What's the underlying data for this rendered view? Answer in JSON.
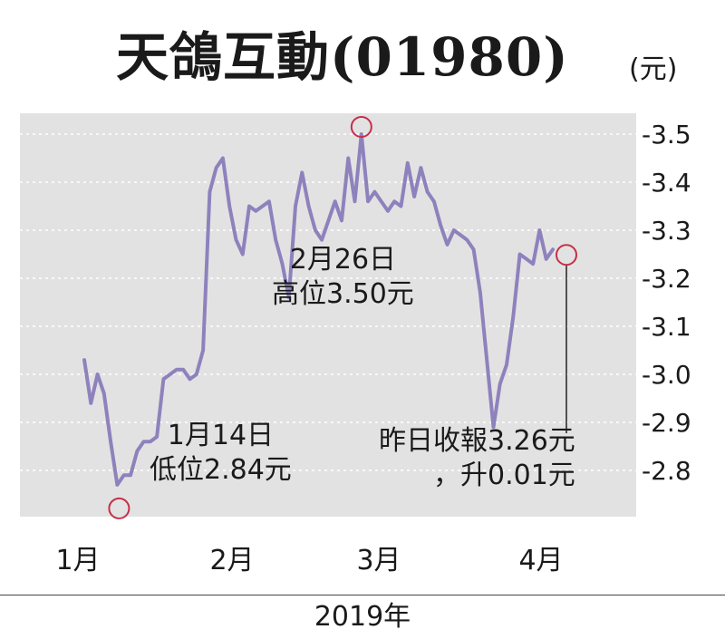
{
  "header": {
    "title": "天鴿互動(01980)",
    "unit": "(元)"
  },
  "chart_data": {
    "type": "line",
    "title": "天鴿互動(01980)",
    "ylabel": "(元)",
    "xlabel": "2019年",
    "ylim": [
      2.75,
      3.54
    ],
    "yticks": [
      2.8,
      2.9,
      3.0,
      3.1,
      3.2,
      3.3,
      3.4,
      3.5
    ],
    "ytick_labels": [
      "-2.8",
      "-2.9",
      "-3.0",
      "-3.1",
      "-3.2",
      "-3.3",
      "-3.4",
      "-3.5"
    ],
    "months": [
      "1月",
      "2月",
      "3月",
      "4月"
    ],
    "series_color": "#8e82bd",
    "marker_color": "#c4304a",
    "series": [
      {
        "values": [
          3.03,
          2.94,
          3.0,
          2.96,
          2.86,
          2.77,
          2.79,
          2.79,
          2.84,
          2.86,
          2.86,
          2.87,
          2.99,
          3.0,
          3.01,
          3.01,
          2.99,
          3.0,
          3.05,
          3.38,
          3.43,
          3.45,
          3.35,
          3.28,
          3.25,
          3.35,
          3.34,
          3.35,
          3.36,
          3.28,
          3.23,
          3.16,
          3.35,
          3.42,
          3.35,
          3.3,
          3.28,
          3.32,
          3.36,
          3.32,
          3.45,
          3.36,
          3.5,
          3.36,
          3.38,
          3.36,
          3.34,
          3.36,
          3.35,
          3.44,
          3.37,
          3.43,
          3.38,
          3.36,
          3.31,
          3.27,
          3.3,
          3.29,
          3.28,
          3.26,
          3.17,
          3.03,
          2.89,
          2.98,
          3.02,
          3.12,
          3.25,
          3.24,
          3.23,
          3.3,
          3.24,
          3.26
        ]
      }
    ],
    "annotations": [
      {
        "lines": [
          "1月14日",
          "低位2.84元"
        ]
      },
      {
        "lines": [
          "2月26日",
          "高位3.50元"
        ]
      },
      {
        "lines": [
          "昨日收報3.26元",
          "，升0.01元"
        ]
      }
    ]
  }
}
